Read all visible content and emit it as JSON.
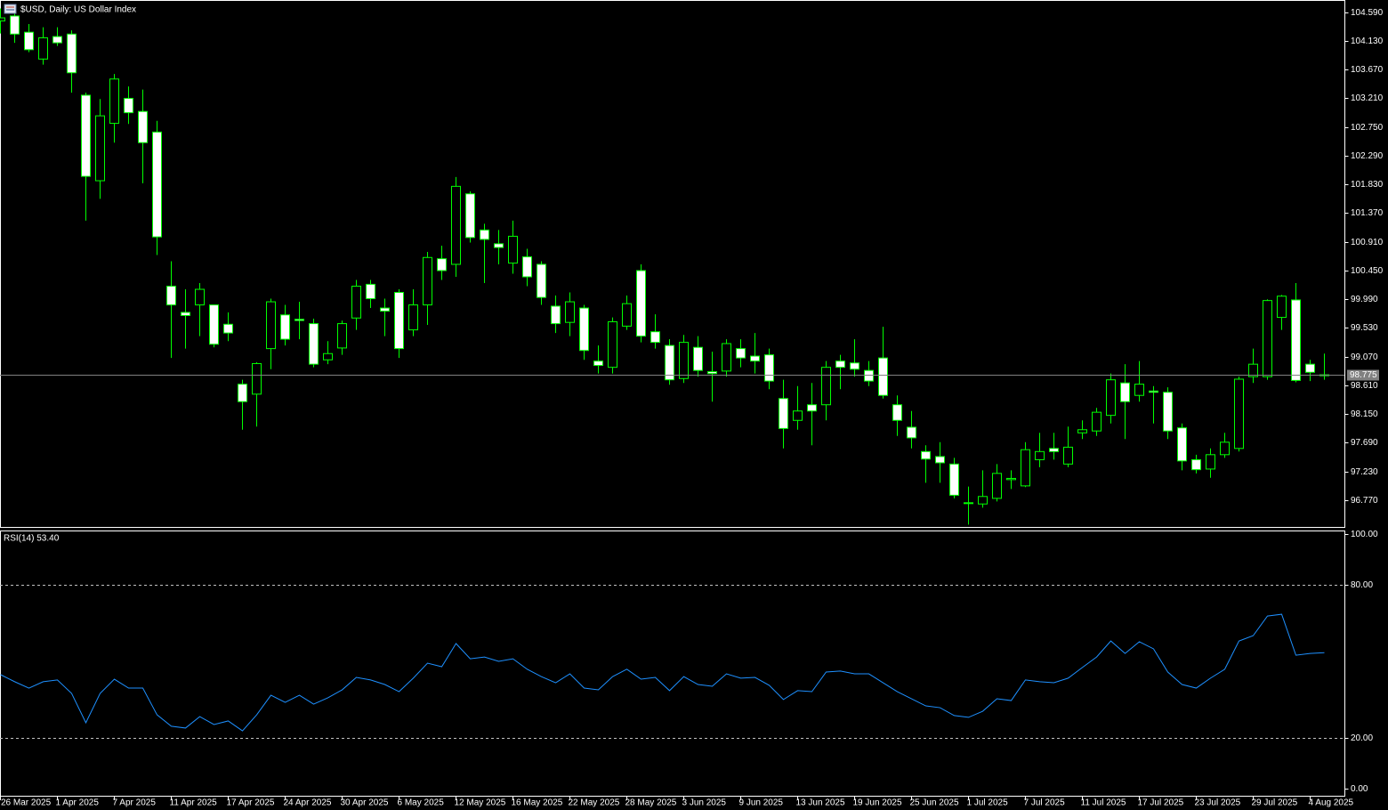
{
  "chart_data": [
    {
      "type": "candlestick",
      "title": "$USD, Daily:  US Dollar Index",
      "categories": [
        "26 Mar 2025",
        null,
        null,
        null,
        "1 Apr 2025",
        null,
        null,
        null,
        "7 Apr 2025",
        null,
        null,
        null,
        "11 Apr 2025",
        null,
        null,
        null,
        "17 Apr 2025",
        null,
        null,
        null,
        "24 Apr 2025",
        null,
        null,
        null,
        "30 Apr 2025",
        null,
        null,
        null,
        "6 May 2025",
        null,
        null,
        null,
        "12 May 2025",
        null,
        null,
        null,
        "16 May 2025",
        null,
        null,
        null,
        "22 May 2025",
        null,
        null,
        null,
        "28 May 2025",
        null,
        null,
        null,
        "3 Jun 2025",
        null,
        null,
        null,
        "9 Jun 2025",
        null,
        null,
        null,
        "13 Jun 2025",
        null,
        null,
        null,
        "19 Jun 2025",
        null,
        null,
        null,
        "25 Jun 2025",
        null,
        null,
        null,
        "1 Jul 2025",
        null,
        null,
        null,
        "7 Jul 2025",
        null,
        null,
        null,
        "11 Jul 2025",
        null,
        null,
        null,
        "17 Jul 2025",
        null,
        null,
        null,
        "23 Jul 2025",
        null,
        null,
        null,
        "29 Jul 2025",
        null,
        null,
        null,
        "4 Aug 2025",
        null
      ],
      "open": [
        104.45,
        104.53,
        104.27,
        103.84,
        104.2,
        104.24,
        103.26,
        101.89,
        102.81,
        103.21,
        103.0,
        102.67,
        100.2,
        99.78,
        99.9,
        99.9,
        99.59,
        98.63,
        98.47,
        99.2,
        99.74,
        99.67,
        99.6,
        99.02,
        99.21,
        99.69,
        100.23,
        99.85,
        100.1,
        99.5,
        99.9,
        100.64,
        100.55,
        101.68,
        101.1,
        100.88,
        100.57,
        100.67,
        100.55,
        99.88,
        99.62,
        99.85,
        99.0,
        98.9,
        99.56,
        100.45,
        99.47,
        99.25,
        98.72,
        99.22,
        98.83,
        98.84,
        99.2,
        99.08,
        99.1,
        98.4,
        98.05,
        98.3,
        98.3,
        99.0,
        98.97,
        98.85,
        99.05,
        98.3,
        97.94,
        97.55,
        97.47,
        97.35,
        96.73,
        96.71,
        96.8,
        97.1,
        97.0,
        97.42,
        97.6,
        97.35,
        97.85,
        97.88,
        98.13,
        98.65,
        98.45,
        98.52,
        98.5,
        97.93,
        97.42,
        97.27,
        97.5,
        97.6,
        98.75,
        98.75,
        99.7,
        99.98,
        98.95,
        98.78
      ],
      "high": [
        104.65,
        104.6,
        104.4,
        104.35,
        104.35,
        104.3,
        103.3,
        103.2,
        103.6,
        103.4,
        103.35,
        102.85,
        100.6,
        100.15,
        100.25,
        99.9,
        99.78,
        98.7,
        98.98,
        100.0,
        99.9,
        99.95,
        99.68,
        99.32,
        99.65,
        100.3,
        100.3,
        100.0,
        100.15,
        100.15,
        100.75,
        100.85,
        101.95,
        101.72,
        101.2,
        101.1,
        101.25,
        100.8,
        100.6,
        100.05,
        100.1,
        99.9,
        99.25,
        99.7,
        100.05,
        100.55,
        99.75,
        99.35,
        99.42,
        99.4,
        99.15,
        99.35,
        99.35,
        99.45,
        99.2,
        98.7,
        98.6,
        98.65,
        99.0,
        99.1,
        99.35,
        99.0,
        99.55,
        98.45,
        98.2,
        97.65,
        97.7,
        97.45,
        96.99,
        97.25,
        97.35,
        97.25,
        97.7,
        97.85,
        97.85,
        97.95,
        98.05,
        98.25,
        98.8,
        98.95,
        99.0,
        98.6,
        98.58,
        98.0,
        97.5,
        97.6,
        97.85,
        98.75,
        99.2,
        99.99,
        100.06,
        100.25,
        99.02,
        99.12
      ],
      "low": [
        104.25,
        104.1,
        103.95,
        103.75,
        104.05,
        103.3,
        101.25,
        101.6,
        102.5,
        102.8,
        101.85,
        100.7,
        99.05,
        99.2,
        99.4,
        99.22,
        99.32,
        97.9,
        97.95,
        98.87,
        99.25,
        99.35,
        98.9,
        98.95,
        99.1,
        99.5,
        99.85,
        99.4,
        99.05,
        99.4,
        99.58,
        100.3,
        100.35,
        100.9,
        100.25,
        100.55,
        100.4,
        100.2,
        99.9,
        99.45,
        99.4,
        99.02,
        98.8,
        98.8,
        99.5,
        99.3,
        99.2,
        98.62,
        98.65,
        98.75,
        98.35,
        98.75,
        98.9,
        98.8,
        98.55,
        97.6,
        97.9,
        97.65,
        98.05,
        98.55,
        98.75,
        98.6,
        98.4,
        97.8,
        97.6,
        97.05,
        97.05,
        96.8,
        96.38,
        96.65,
        96.75,
        96.95,
        96.98,
        97.3,
        97.42,
        97.3,
        97.75,
        97.8,
        98.0,
        97.75,
        98.35,
        98.0,
        97.75,
        97.25,
        97.2,
        97.13,
        97.45,
        97.55,
        98.65,
        98.7,
        99.5,
        98.66,
        98.68,
        98.7
      ],
      "close": [
        104.5,
        104.24,
        103.99,
        104.18,
        104.1,
        103.62,
        101.96,
        102.93,
        103.52,
        102.98,
        102.5,
        100.99,
        99.9,
        99.73,
        100.15,
        99.27,
        99.45,
        98.35,
        98.96,
        99.95,
        99.35,
        99.65,
        98.95,
        99.12,
        99.6,
        100.2,
        100.0,
        99.8,
        99.2,
        99.9,
        100.66,
        100.45,
        101.8,
        100.98,
        100.95,
        100.82,
        101.0,
        100.35,
        100.02,
        99.6,
        99.95,
        99.17,
        98.93,
        99.63,
        99.92,
        99.4,
        99.3,
        98.7,
        99.3,
        98.85,
        98.8,
        99.28,
        99.05,
        99.0,
        98.68,
        97.92,
        98.2,
        98.2,
        98.9,
        98.9,
        98.87,
        98.68,
        98.45,
        98.05,
        97.77,
        97.43,
        97.37,
        96.85,
        96.72,
        96.83,
        97.2,
        97.12,
        97.58,
        97.55,
        97.55,
        97.62,
        97.9,
        98.18,
        98.7,
        98.35,
        98.63,
        98.5,
        97.88,
        97.4,
        97.26,
        97.5,
        97.7,
        98.71,
        98.95,
        99.97,
        100.04,
        98.69,
        98.82,
        98.775
      ],
      "last_price": 98.775,
      "wick_color": "#00ff00",
      "up_fill": "#000000",
      "down_fill": "#ffffff",
      "last_price_color": "#808080",
      "ylim": [
        96.342,
        104.786
      ],
      "yticks": [
        {
          "value": 104.59,
          "label": "104.590"
        },
        {
          "value": 104.13,
          "label": "104.130"
        },
        {
          "value": 103.67,
          "label": "103.670"
        },
        {
          "value": 103.21,
          "label": "103.210"
        },
        {
          "value": 102.75,
          "label": "102.750"
        },
        {
          "value": 102.29,
          "label": "102.290"
        },
        {
          "value": 101.83,
          "label": "101.830"
        },
        {
          "value": 101.37,
          "label": "101.370"
        },
        {
          "value": 100.91,
          "label": "100.910"
        },
        {
          "value": 100.45,
          "label": "100.450"
        },
        {
          "value": 99.99,
          "label": "99.990"
        },
        {
          "value": 99.53,
          "label": "99.530"
        },
        {
          "value": 99.07,
          "label": "99.070"
        },
        {
          "value": 98.61,
          "label": "98.610"
        },
        {
          "value": 98.15,
          "label": "98.150"
        },
        {
          "value": 97.69,
          "label": "97.690"
        },
        {
          "value": 97.23,
          "label": "97.230"
        },
        {
          "value": 96.77,
          "label": "96.770"
        }
      ]
    },
    {
      "type": "line",
      "title": "RSI(14) 53.40",
      "values": [
        44.8,
        42,
        39.5,
        42,
        42.7,
        37.4,
        25.9,
        37.4,
        43,
        39.5,
        39.5,
        29,
        24.5,
        23.8,
        28.3,
        25.2,
        26.6,
        22.7,
        29,
        36.7,
        33.9,
        36.7,
        33.2,
        35.7,
        38.8,
        43.7,
        42.7,
        40.9,
        38.1,
        43.4,
        49.3,
        47.9,
        57,
        51,
        51.7,
        50,
        51,
        46.9,
        44,
        41.6,
        45.1,
        39.5,
        38.8,
        44,
        46.9,
        43,
        43.7,
        38.5,
        44,
        40.9,
        40.2,
        45.1,
        43.4,
        43.7,
        40.6,
        35,
        38.5,
        38.1,
        45.8,
        46.2,
        45.1,
        45.1,
        41.6,
        38.1,
        35.3,
        32.5,
        31.8,
        28.7,
        28,
        30.4,
        35.3,
        34.6,
        42.7,
        42,
        41.6,
        43.4,
        47.6,
        51.7,
        58,
        53.1,
        57.7,
        54.9,
        45.8,
        40.9,
        39.5,
        43.4,
        46.9,
        58,
        60.1,
        67.8,
        68.5,
        52.4,
        53.1,
        53.4
      ],
      "color": "#1e90ff",
      "levels": [
        80,
        20
      ],
      "ylim": [
        0,
        100
      ],
      "yticks": [
        {
          "value": 100,
          "label": "100.00"
        },
        {
          "value": 80,
          "label": "80.00"
        },
        {
          "value": 20,
          "label": "20.00"
        },
        {
          "value": 0,
          "label": "0.00"
        }
      ]
    }
  ]
}
